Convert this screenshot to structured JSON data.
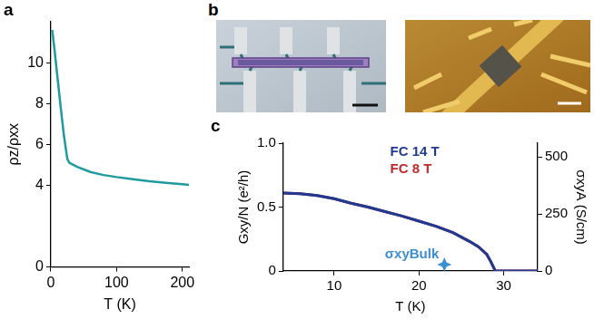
{
  "chart_data": [
    {
      "type": "line",
      "title": "a",
      "x_label": "T (K)",
      "y_label": "ρz/ρxx",
      "x": [
        2,
        5,
        10,
        15,
        20,
        25,
        28,
        40,
        60,
        80,
        100,
        125,
        150,
        175,
        200,
        210
      ],
      "values": [
        11.6,
        10.8,
        9.3,
        7.8,
        6.4,
        5.3,
        5.1,
        4.9,
        4.65,
        4.5,
        4.4,
        4.3,
        4.2,
        4.12,
        4.05,
        4.02
      ],
      "color": "#1f9a9e",
      "xlim": [
        0,
        210
      ],
      "xticks": [
        0,
        100,
        200
      ],
      "ylim": [
        0,
        12
      ],
      "yticks": [
        0,
        4,
        6,
        8,
        10
      ],
      "grid": false
    },
    {
      "type": "line",
      "title": "c",
      "x_label": "T (K)",
      "y_label": "Gxy/N (e²/h)",
      "y2_label": "σxyA (S/cm)",
      "x": [
        4,
        6,
        8,
        10,
        12,
        14,
        16,
        18,
        20,
        22,
        24,
        26,
        27,
        28,
        28.5,
        29,
        30,
        32,
        34
      ],
      "series": [
        {
          "name": "FC 14 T",
          "color": "#1f3a93",
          "values": [
            0.61,
            0.605,
            0.59,
            0.565,
            0.53,
            0.5,
            0.465,
            0.43,
            0.39,
            0.35,
            0.3,
            0.23,
            0.19,
            0.13,
            0.07,
            0,
            0,
            0,
            0
          ]
        },
        {
          "name": "FC 8 T",
          "color": "#c0282d",
          "values": [
            0.61,
            0.605,
            0.59,
            0.565,
            0.53,
            0.5,
            0.465,
            0.43,
            0.39,
            0.35,
            0.3,
            0.23,
            0.19,
            0.13,
            0.07,
            0,
            0,
            0,
            0
          ]
        }
      ],
      "annotations": [
        {
          "text": "σxyBulk",
          "x": 23,
          "y": 0.05,
          "marker": "star",
          "color": "#3b8fd0"
        }
      ],
      "xlim": [
        4,
        34
      ],
      "xticks": [
        10,
        20,
        30
      ],
      "ylim": [
        0,
        1
      ],
      "yticks": [
        0,
        0.5,
        {
          "value": 1,
          "label": "1.0"
        }
      ],
      "y2lim": [
        0,
        560
      ],
      "y2ticks": [
        0,
        250,
        500
      ],
      "grid": false,
      "legend": "upper right"
    }
  ],
  "panel_b": {
    "label": "b"
  }
}
